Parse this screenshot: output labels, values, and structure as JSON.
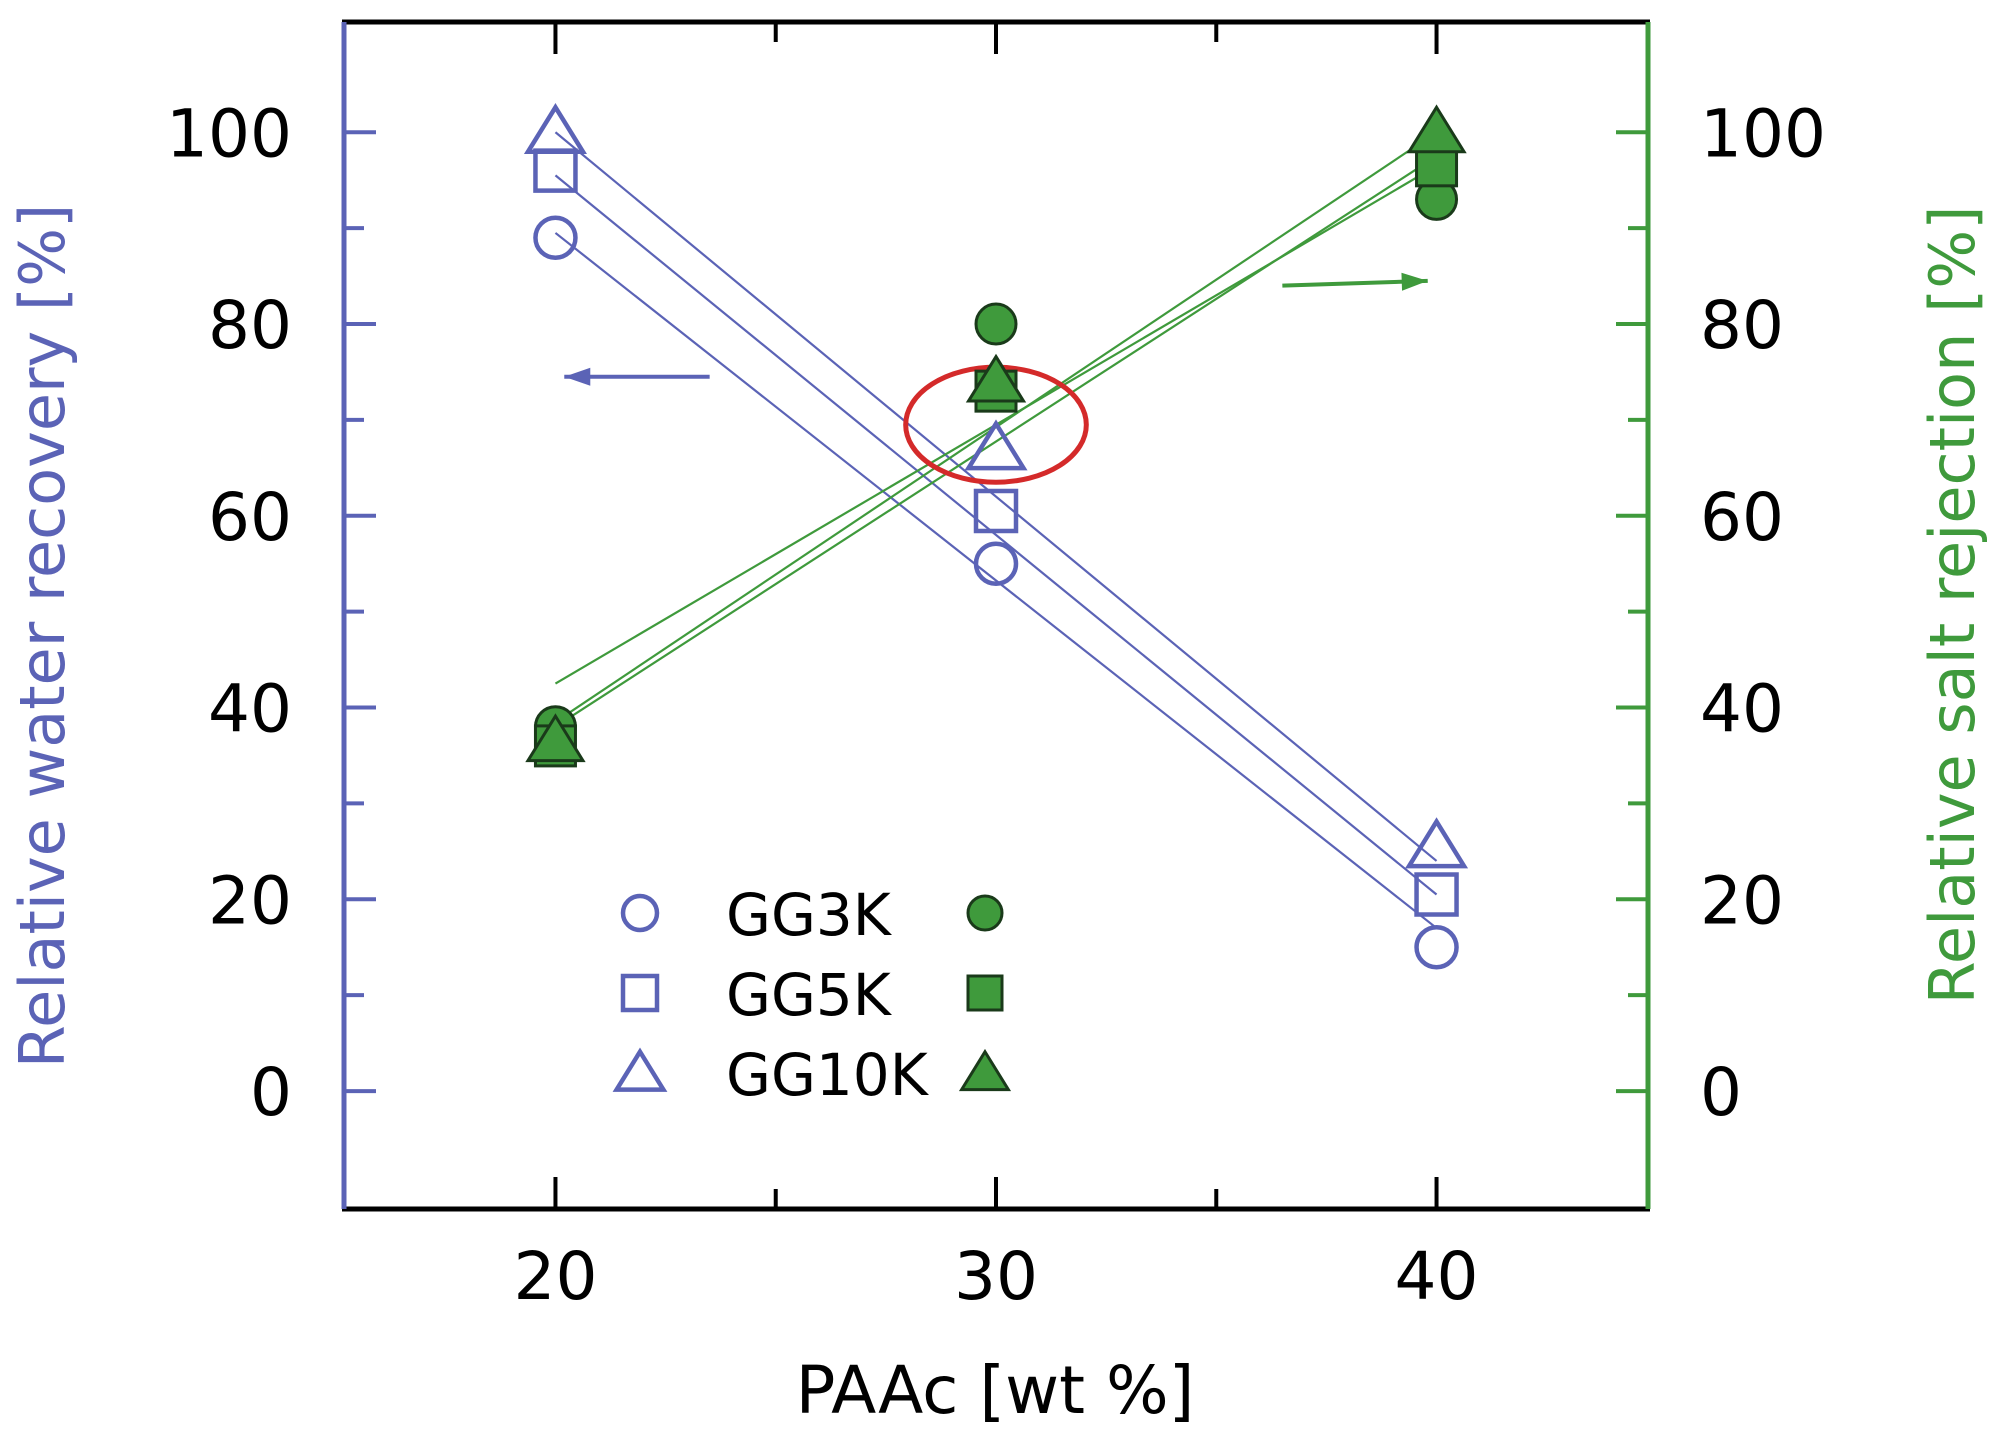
{
  "chart_data": {
    "type": "scatter",
    "title": "",
    "xlabel": "PAAc [wt %]",
    "ylabel_left": "Relative water recovery [%]",
    "ylabel_right": "Relative salt rejection [%]",
    "x_ticks": [
      20,
      30,
      40
    ],
    "y_ticks": [
      0,
      20,
      40,
      60,
      80,
      100
    ],
    "xlim": [
      15.2,
      44.8
    ],
    "ylim": [
      -12.3,
      111.5
    ],
    "grid": false,
    "legend_position": "bottom-center",
    "colors": {
      "water": "#5b63b6",
      "salt": "#3f9a3c",
      "salt_edge": "#1a3a1a",
      "highlight": "#d42a2a",
      "axis": "#000000"
    },
    "series": [
      {
        "name": "GG3K",
        "metric": "water",
        "marker": "circle",
        "filled": false,
        "x": [
          20,
          30,
          40
        ],
        "y": [
          89,
          55,
          15
        ]
      },
      {
        "name": "GG5K",
        "metric": "water",
        "marker": "square",
        "filled": false,
        "x": [
          20,
          30,
          40
        ],
        "y": [
          96,
          60.5,
          20.5
        ]
      },
      {
        "name": "GG10K",
        "metric": "water",
        "marker": "triangle",
        "filled": false,
        "x": [
          20,
          30,
          40
        ],
        "y": [
          100,
          67,
          25.5
        ]
      },
      {
        "name": "GG3K",
        "metric": "salt",
        "marker": "circle",
        "filled": true,
        "x": [
          20,
          30,
          40
        ],
        "y": [
          38,
          80,
          93
        ]
      },
      {
        "name": "GG5K",
        "metric": "salt",
        "marker": "square",
        "filled": true,
        "x": [
          20,
          30,
          40
        ],
        "y": [
          36,
          73,
          96.5
        ]
      },
      {
        "name": "GG10K",
        "metric": "salt",
        "marker": "triangle",
        "filled": true,
        "x": [
          20,
          30,
          40
        ],
        "y": [
          36.5,
          74,
          100
        ]
      }
    ],
    "fit_lines": [
      {
        "metric": "water",
        "x": [
          20,
          40
        ],
        "y": [
          89.5,
          17
        ]
      },
      {
        "metric": "water",
        "x": [
          20,
          40
        ],
        "y": [
          95.5,
          20.5
        ]
      },
      {
        "metric": "water",
        "x": [
          20,
          40
        ],
        "y": [
          100,
          24
        ]
      },
      {
        "metric": "salt",
        "x": [
          20,
          40
        ],
        "y": [
          42.5,
          96.5
        ]
      },
      {
        "metric": "salt",
        "x": [
          20,
          40
        ],
        "y": [
          38,
          97.5
        ]
      },
      {
        "metric": "salt",
        "x": [
          20,
          40
        ],
        "y": [
          38.5,
          100
        ]
      }
    ],
    "legend": {
      "entries": [
        {
          "label": "GG3K",
          "marker": "circle"
        },
        {
          "label": "GG5K",
          "marker": "square"
        },
        {
          "label": "GG10K",
          "marker": "triangle"
        }
      ]
    },
    "annotations": [
      {
        "type": "arrow",
        "direction": "left",
        "meaning": "water recovery uses left axis",
        "from": [
          23.5,
          74.5
        ],
        "to": [
          20.2,
          74.5
        ]
      },
      {
        "type": "arrow",
        "direction": "right",
        "meaning": "salt rejection uses right axis",
        "from": [
          36.5,
          84
        ],
        "to": [
          39.8,
          84.5
        ]
      },
      {
        "type": "ellipse",
        "meaning": "crossover region highlighted",
        "center": [
          30,
          69.5
        ],
        "radius": [
          2.05,
          6
        ]
      }
    ]
  }
}
